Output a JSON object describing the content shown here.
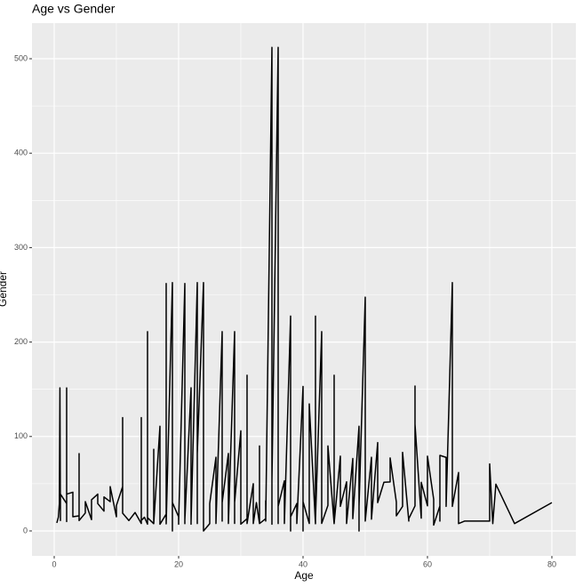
{
  "chart_data": {
    "type": "line",
    "title": "Age vs Gender",
    "x_label": "Age",
    "y_label": "Gender",
    "color": "#000000",
    "grid": true,
    "xlim": [
      -3.57,
      83.86
    ],
    "ylim": [
      -26.4,
      537.7
    ],
    "xticks": [
      0,
      20,
      40,
      60,
      80
    ],
    "yticks": [
      0,
      100,
      200,
      300,
      400,
      500
    ],
    "xminor": [
      10,
      30,
      50,
      70
    ],
    "yminor": [
      50,
      150,
      250,
      350,
      450
    ],
    "x": [
      0.42,
      0.67,
      0.83,
      0.92,
      1,
      1,
      2,
      2,
      2,
      2,
      3,
      3,
      4,
      4,
      4,
      5,
      5,
      6,
      6,
      7,
      7,
      8,
      8,
      9,
      9,
      10,
      10,
      11,
      11,
      11,
      12,
      13,
      14,
      14,
      14,
      14.5,
      15,
      15,
      15,
      16,
      16,
      16,
      16,
      17,
      17,
      18,
      18,
      18,
      19,
      19,
      19,
      20,
      20,
      20,
      21,
      21,
      21,
      22,
      22,
      22,
      23,
      23,
      23,
      24,
      24,
      24,
      24,
      25,
      25,
      26,
      26,
      27,
      27,
      27,
      28,
      28,
      29,
      29,
      29,
      30,
      30,
      31,
      31,
      31,
      32,
      32,
      32.5,
      33,
      33,
      33,
      34,
      34,
      34,
      35,
      35,
      35,
      36,
      36,
      36,
      36,
      37,
      37,
      38,
      38,
      38,
      39,
      39,
      40,
      40,
      40,
      41,
      41,
      42,
      42,
      42,
      43,
      43,
      44,
      44,
      45,
      45,
      45,
      46,
      46,
      47,
      47,
      48,
      48,
      49,
      49,
      49,
      50,
      50,
      51,
      51,
      52,
      52,
      53,
      54,
      54,
      55,
      55,
      56,
      56,
      57,
      57,
      58,
      58,
      58,
      59,
      59,
      60,
      60,
      61,
      61,
      62,
      62,
      62,
      63,
      63,
      64,
      64,
      65,
      65,
      66,
      70,
      70,
      70.5,
      71,
      74,
      80
    ],
    "values": [
      8.5,
      14.5,
      29,
      151.5,
      11,
      39,
      29,
      151.5,
      10,
      39,
      41,
      15,
      16,
      81.9,
      11,
      19,
      31,
      12,
      33,
      39,
      29,
      21,
      36,
      31,
      46.9,
      15,
      27,
      46.9,
      120,
      18.8,
      11,
      19.5,
      7.9,
      120,
      11,
      14.5,
      7.2,
      211,
      14,
      7.7,
      39,
      86.5,
      8,
      110.9,
      7.1,
      17.8,
      262,
      7.5,
      263,
      0,
      30,
      15,
      7.2,
      9.8,
      262,
      7.7,
      11.5,
      151.6,
      7.2,
      9.3,
      263,
      7.9,
      82,
      263,
      9,
      151.6,
      0,
      7.7,
      29,
      78,
      7.9,
      211,
      10.5,
      30,
      82,
      7.9,
      211,
      8,
      30,
      106,
      7.2,
      13,
      164.9,
      7.9,
      50,
      7.9,
      30,
      7.9,
      90,
      7.8,
      13,
      32,
      10.5,
      512,
      7.1,
      53,
      512,
      7.9,
      120,
      26,
      53,
      7.9,
      227.5,
      0,
      15,
      29,
      7.9,
      153,
      0,
      31,
      7.9,
      134.5,
      7.6,
      227.5,
      13,
      211,
      8,
      27,
      90,
      7.7,
      164.9,
      8,
      79.2,
      26,
      52,
      7.9,
      76.7,
      13,
      110.9,
      0,
      26,
      247.5,
      10.5,
      78,
      12.5,
      93.5,
      30,
      51.5,
      51.9,
      77.3,
      30.5,
      16,
      26,
      83.2,
      10.5,
      13,
      26.5,
      153.5,
      113,
      13.5,
      51.5,
      26.6,
      79.2,
      33.5,
      6.2,
      26.5,
      10.5,
      80,
      77.9,
      26,
      263,
      26,
      61.9,
      7.75,
      10.5,
      10.5,
      71,
      7.75,
      49.5,
      7.8,
      30
    ]
  }
}
